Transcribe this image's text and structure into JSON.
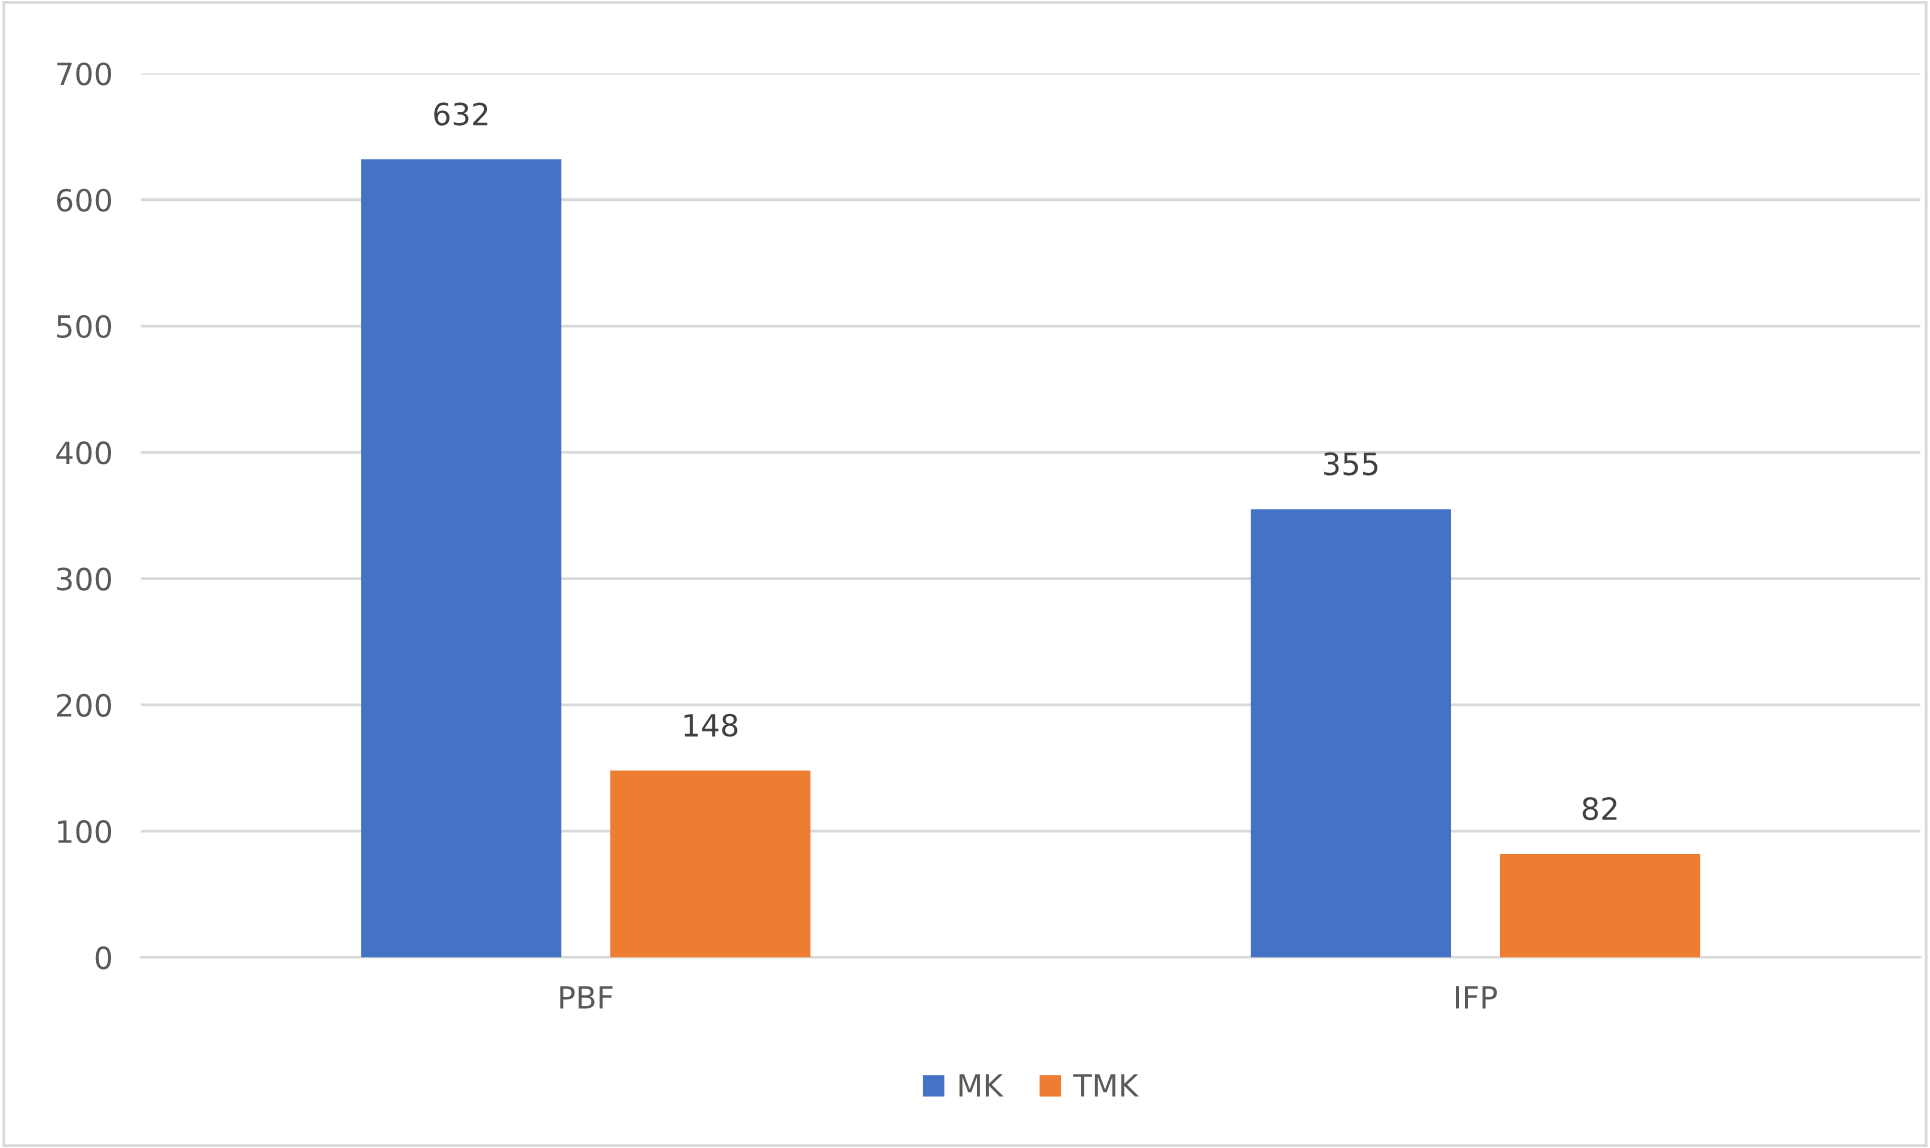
{
  "chart_data": {
    "type": "bar",
    "categories": [
      "PBF",
      "IFP"
    ],
    "series": [
      {
        "name": "MK",
        "color": "#4472c4",
        "values": [
          632,
          355
        ]
      },
      {
        "name": "TMK",
        "color": "#ed7d31",
        "values": [
          148,
          82
        ]
      }
    ],
    "ylim": [
      0,
      700
    ],
    "yticks": [
      0,
      100,
      200,
      300,
      400,
      500,
      600,
      700
    ],
    "grid": "y",
    "legend": "bottom",
    "data_labels": true
  }
}
